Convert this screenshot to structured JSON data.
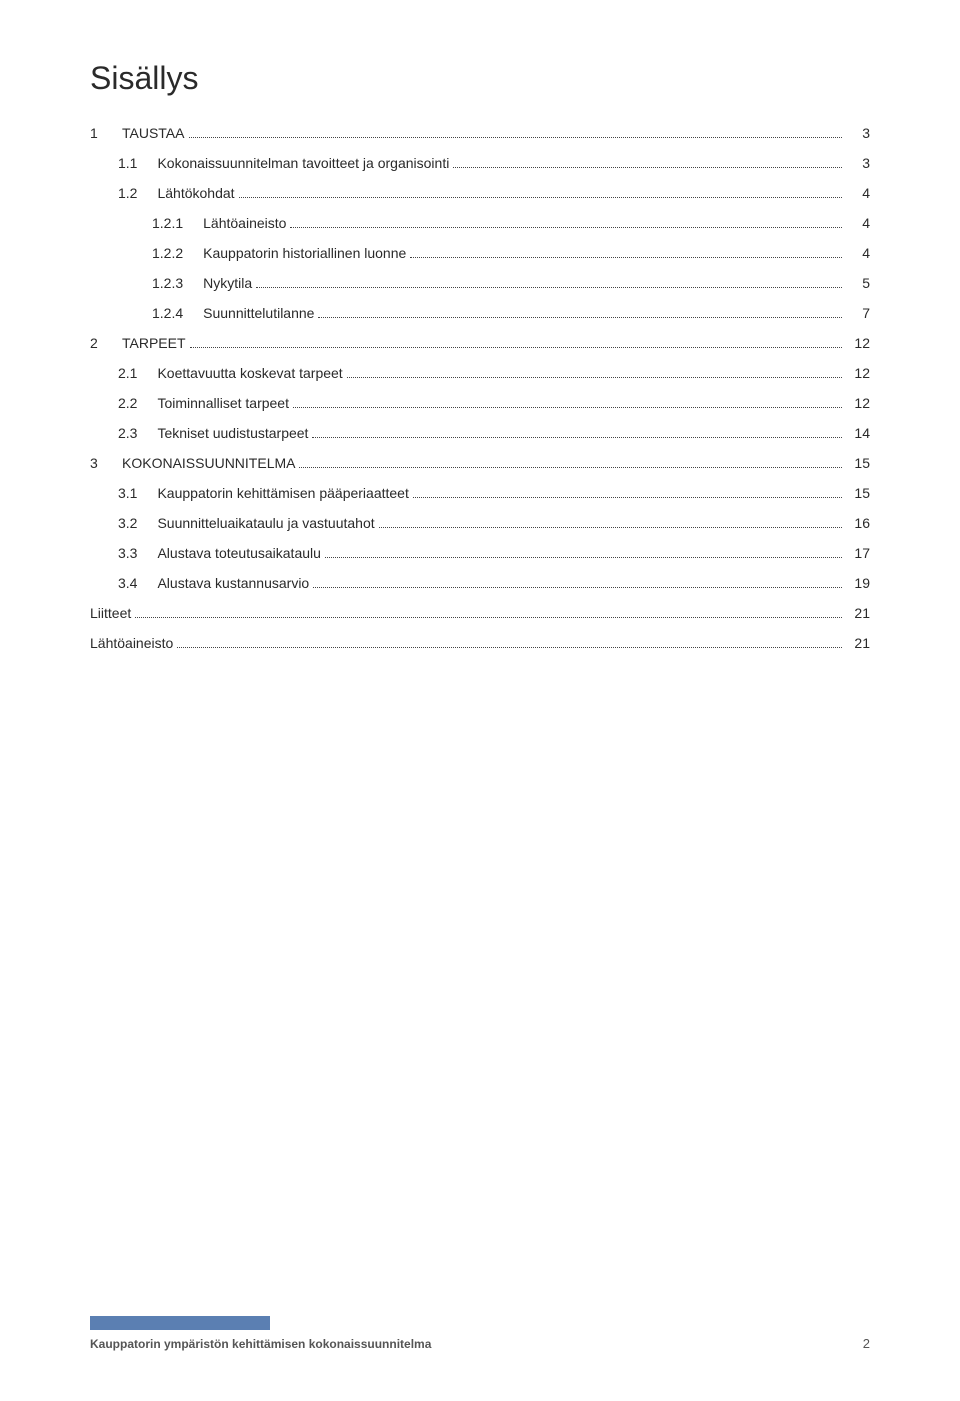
{
  "title": "Sisällys",
  "toc": [
    {
      "indent": 0,
      "num": "1",
      "label": "TAUSTAA",
      "page": "3"
    },
    {
      "indent": 1,
      "num": "1.1",
      "label": "Kokonaissuunnitelman tavoitteet ja organisointi",
      "page": "3"
    },
    {
      "indent": 1,
      "num": "1.2",
      "label": "Lähtökohdat",
      "page": "4"
    },
    {
      "indent": 2,
      "num": "1.2.1",
      "label": "Lähtöaineisto",
      "page": "4"
    },
    {
      "indent": 2,
      "num": "1.2.2",
      "label": "Kauppatorin historiallinen luonne",
      "page": "4"
    },
    {
      "indent": 2,
      "num": "1.2.3",
      "label": "Nykytila",
      "page": "5"
    },
    {
      "indent": 2,
      "num": "1.2.4",
      "label": "Suunnittelutilanne",
      "page": "7"
    },
    {
      "indent": 0,
      "num": "2",
      "label": "TARPEET",
      "page": "12"
    },
    {
      "indent": 1,
      "num": "2.1",
      "label": "Koettavuutta koskevat tarpeet",
      "page": "12"
    },
    {
      "indent": 1,
      "num": "2.2",
      "label": "Toiminnalliset tarpeet",
      "page": "12"
    },
    {
      "indent": 1,
      "num": "2.3",
      "label": "Tekniset uudistustarpeet",
      "page": "14"
    },
    {
      "indent": 0,
      "num": "3",
      "label": "KOKONAISSUUNNITELMA",
      "page": "15"
    },
    {
      "indent": 1,
      "num": "3.1",
      "label": "Kauppatorin kehittämisen pääperiaatteet",
      "page": "15"
    },
    {
      "indent": 1,
      "num": "3.2",
      "label": "Suunnitteluaikataulu ja vastuutahot",
      "page": "16"
    },
    {
      "indent": 1,
      "num": "3.3",
      "label": "Alustava toteutusaikataulu",
      "page": "17"
    },
    {
      "indent": 1,
      "num": "3.4",
      "label": "Alustava kustannusarvio",
      "page": "19"
    },
    {
      "indent": 0,
      "num": "",
      "label": "Liitteet",
      "page": "21"
    },
    {
      "indent": 0,
      "num": "",
      "label": "Lähtöaineisto",
      "page": "21"
    }
  ],
  "footer": {
    "text": "Kauppatorin ympäristön kehittämisen kokonaissuunnitelma",
    "page": "2",
    "bar_color": "#5b7fb2"
  },
  "colors": {
    "background": "#ffffff",
    "text": "#2a2a2a",
    "footer_text": "#555555"
  },
  "typography": {
    "title_fontsize": 32,
    "body_fontsize": 14,
    "footer_fontsize": 12
  }
}
